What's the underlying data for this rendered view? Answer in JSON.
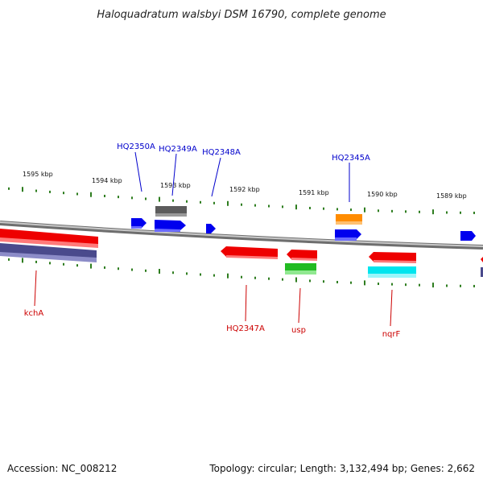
{
  "title": "Haloquadratum walsbyi DSM 16790, complete genome",
  "colors": {
    "backbone": "#8f8f8f",
    "tick": "#2e7d1f",
    "label_top": "#0000cc",
    "label_bottom": "#cc0000"
  },
  "kbp_labels": [
    {
      "text": "1595 kbp",
      "pos": 1595
    },
    {
      "text": "1594 kbp",
      "pos": 1594
    },
    {
      "text": "1593 kbp",
      "pos": 1593
    },
    {
      "text": "1592 kbp",
      "pos": 1592
    },
    {
      "text": "1591 kbp",
      "pos": 1591
    },
    {
      "text": "1590 kbp",
      "pos": 1590
    },
    {
      "text": "1589 kbp",
      "pos": 1589
    }
  ],
  "features": [
    {
      "strand": "+",
      "color": "#0000ee"
    },
    {
      "strand": "+",
      "color": "#0000ee"
    },
    {
      "strand": "none",
      "color": "#666666"
    },
    {
      "strand": "+",
      "color": "#0000ee"
    },
    {
      "strand": "none",
      "color": "#ff8c00"
    },
    {
      "strand": "+",
      "color": "#0000ee"
    },
    {
      "strand": "+",
      "color": "#0000ee"
    },
    {
      "strand": "none",
      "color": "#ee0000"
    },
    {
      "strand": "none",
      "color": "#4a4a8c"
    },
    {
      "strand": "-",
      "color": "#ee0000"
    },
    {
      "strand": "-",
      "color": "#ee0000"
    },
    {
      "strand": "none",
      "color": "#22bb22"
    },
    {
      "strand": "-",
      "color": "#ee0000"
    },
    {
      "strand": "none",
      "color": "#00e5ee"
    },
    {
      "strand": "-",
      "color": "#ee0000"
    }
  ],
  "top_labels": [
    "HQ2350A",
    "HQ2349A",
    "HQ2348A",
    "HQ2345A"
  ],
  "bottom_labels": [
    "kchA",
    "HQ2347A",
    "usp",
    "nqrF"
  ],
  "footer": {
    "accession": "Accession: NC_008212",
    "topology": "Topology: circular; Length: 3,132,494 bp; Genes: 2,662"
  }
}
